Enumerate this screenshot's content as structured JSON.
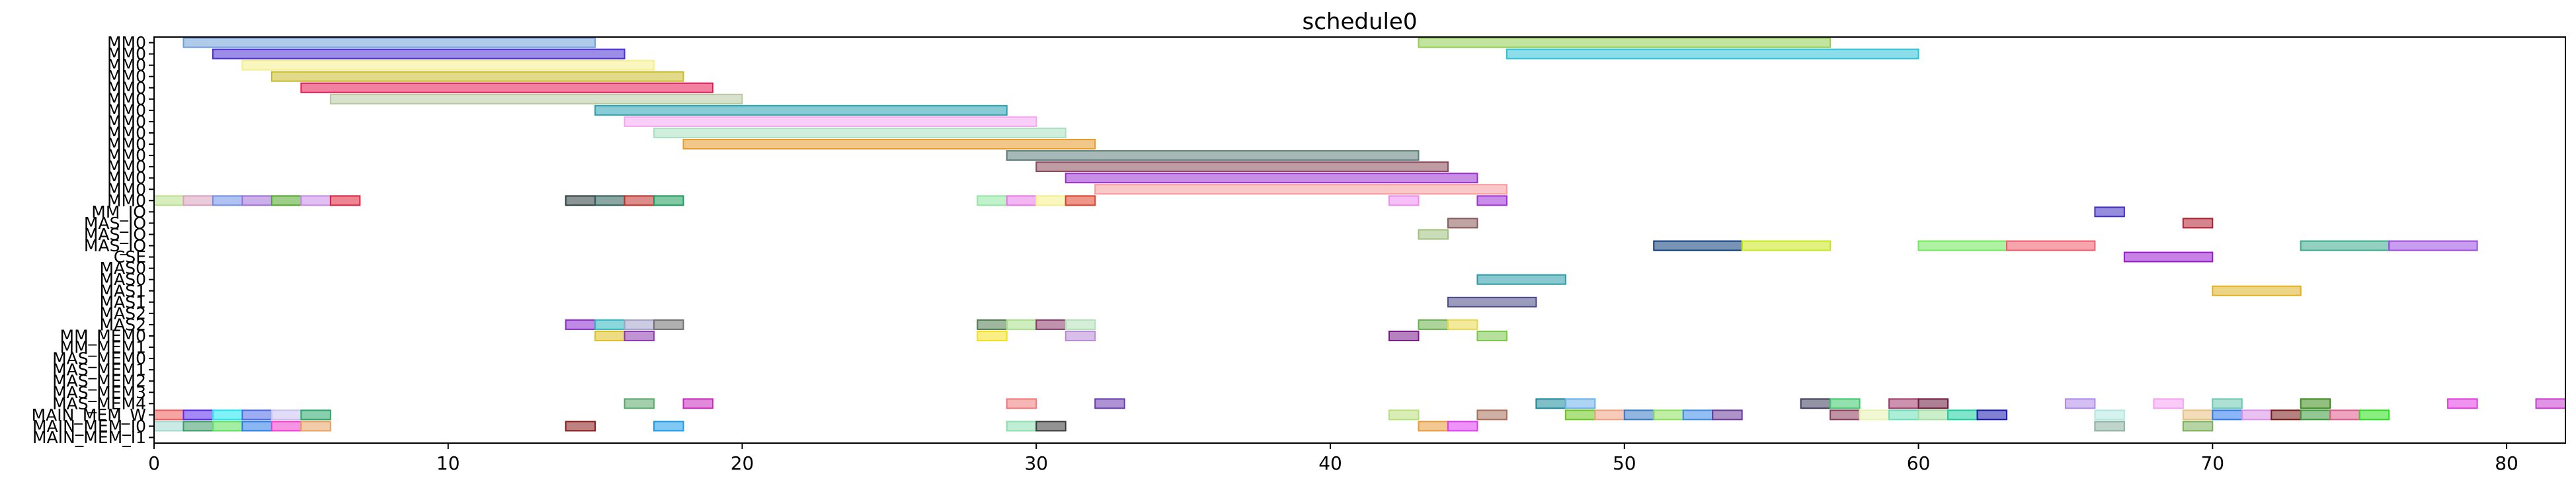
{
  "chart_data": {
    "type": "gantt",
    "title": "schedule0",
    "xlim": [
      0,
      82
    ],
    "x_ticks": [
      0,
      10,
      20,
      30,
      40,
      50,
      60,
      70,
      80
    ],
    "rows": [
      "MM0",
      "MM0",
      "MM0",
      "MM0",
      "MM0",
      "MM0",
      "MM0",
      "MM0",
      "MM0",
      "MM0",
      "MM0",
      "MM0",
      "MM0",
      "MM0",
      "MM0",
      "MM_IO",
      "MAS_IO",
      "MAS_IO",
      "MAS_IO",
      "CSE",
      "MAS0",
      "MAS0",
      "MAS1",
      "MAS1",
      "MAS2",
      "MAS2",
      "MM_MEM0",
      "MM_MEM1",
      "MAS_MEM0",
      "MAS_MEM1",
      "MAS_MEM2",
      "MAS_MEM3",
      "MAS_MEM4",
      "MAIN_MEM_W",
      "MAIN_MEM_I0",
      "MAIN_MEM_I1"
    ],
    "grid": false,
    "tasks": [
      {
        "row": 0,
        "start": 1,
        "end": 15,
        "color": "#6f9ed9"
      },
      {
        "row": 0,
        "start": 43,
        "end": 57,
        "color": "#8fce4f"
      },
      {
        "row": 1,
        "start": 2,
        "end": 16,
        "color": "#4b2fd4"
      },
      {
        "row": 1,
        "start": 46,
        "end": 60,
        "color": "#2cc3d8"
      },
      {
        "row": 2,
        "start": 3,
        "end": 17,
        "color": "#f5ef8c"
      },
      {
        "row": 3,
        "start": 4,
        "end": 18,
        "color": "#c7bb2a"
      },
      {
        "row": 4,
        "start": 5,
        "end": 19,
        "color": "#e41a52"
      },
      {
        "row": 5,
        "start": 6,
        "end": 20,
        "color": "#b7c9a0"
      },
      {
        "row": 6,
        "start": 15,
        "end": 29,
        "color": "#2aa3b3"
      },
      {
        "row": 7,
        "start": 16,
        "end": 30,
        "color": "#f5a7f0"
      },
      {
        "row": 8,
        "start": 17,
        "end": 31,
        "color": "#a8e0c0"
      },
      {
        "row": 9,
        "start": 18,
        "end": 32,
        "color": "#e89a2a"
      },
      {
        "row": 10,
        "start": 29,
        "end": 43,
        "color": "#5c7f7a"
      },
      {
        "row": 11,
        "start": 30,
        "end": 44,
        "color": "#8b4a5a"
      },
      {
        "row": 12,
        "start": 31,
        "end": 45,
        "color": "#9b2fd0"
      },
      {
        "row": 13,
        "start": 32,
        "end": 46,
        "color": "#f59a9a"
      },
      {
        "row": 14,
        "start": 0,
        "end": 1,
        "color": "#b8e08a"
      },
      {
        "row": 14,
        "start": 1,
        "end": 2,
        "color": "#d9a0c0"
      },
      {
        "row": 14,
        "start": 2,
        "end": 3,
        "color": "#6f8fe8"
      },
      {
        "row": 14,
        "start": 3,
        "end": 4,
        "color": "#a06fd8"
      },
      {
        "row": 14,
        "start": 4,
        "end": 5,
        "color": "#4fa82a"
      },
      {
        "row": 14,
        "start": 5,
        "end": 6,
        "color": "#c88ae8"
      },
      {
        "row": 14,
        "start": 6,
        "end": 7,
        "color": "#e0203a"
      },
      {
        "row": 14,
        "start": 14,
        "end": 15,
        "color": "#2c3e3e"
      },
      {
        "row": 14,
        "start": 15,
        "end": 16,
        "color": "#2c5e5a"
      },
      {
        "row": 14,
        "start": 16,
        "end": 17,
        "color": "#c0302a"
      },
      {
        "row": 14,
        "start": 17,
        "end": 18,
        "color": "#1a9a5a"
      },
      {
        "row": 14,
        "start": 28,
        "end": 29,
        "color": "#8fe8a0"
      },
      {
        "row": 14,
        "start": 29,
        "end": 30,
        "color": "#e87ae8"
      },
      {
        "row": 14,
        "start": 30,
        "end": 31,
        "color": "#f5f08a"
      },
      {
        "row": 14,
        "start": 31,
        "end": 32,
        "color": "#e0402a"
      },
      {
        "row": 14,
        "start": 42,
        "end": 43,
        "color": "#f08af0"
      },
      {
        "row": 14,
        "start": 45,
        "end": 46,
        "color": "#a030d8"
      },
      {
        "row": 15,
        "start": 66,
        "end": 67,
        "color": "#4030c0"
      },
      {
        "row": 16,
        "start": 44,
        "end": 45,
        "color": "#8a5a5a"
      },
      {
        "row": 16,
        "start": 69,
        "end": 70,
        "color": "#b02030"
      },
      {
        "row": 17,
        "start": 43,
        "end": 44,
        "color": "#a0c080"
      },
      {
        "row": 18,
        "start": 51,
        "end": 54,
        "color": "#0a3a7a"
      },
      {
        "row": 18,
        "start": 54,
        "end": 57,
        "color": "#c8e81a"
      },
      {
        "row": 18,
        "start": 60,
        "end": 63,
        "color": "#6fe85a"
      },
      {
        "row": 18,
        "start": 63,
        "end": 66,
        "color": "#f05a6a"
      },
      {
        "row": 18,
        "start": 73,
        "end": 76,
        "color": "#3aaa8a"
      },
      {
        "row": 18,
        "start": 76,
        "end": 79,
        "color": "#9a4ae0"
      },
      {
        "row": 19,
        "start": 67,
        "end": 70,
        "color": "#9a1ad0"
      },
      {
        "row": 21,
        "start": 45,
        "end": 48,
        "color": "#2a9aa8"
      },
      {
        "row": 22,
        "start": 70,
        "end": 73,
        "color": "#e0b020"
      },
      {
        "row": 23,
        "start": 44,
        "end": 47,
        "color": "#4a4a8a"
      },
      {
        "row": 25,
        "start": 14,
        "end": 15,
        "color": "#8a2ad0"
      },
      {
        "row": 25,
        "start": 15,
        "end": 16,
        "color": "#2ab8c0"
      },
      {
        "row": 25,
        "start": 16,
        "end": 17,
        "color": "#a0a0c8"
      },
      {
        "row": 25,
        "start": 17,
        "end": 18,
        "color": "#707070"
      },
      {
        "row": 25,
        "start": 28,
        "end": 29,
        "color": "#507a50"
      },
      {
        "row": 25,
        "start": 29,
        "end": 30,
        "color": "#a8e08a"
      },
      {
        "row": 25,
        "start": 30,
        "end": 31,
        "color": "#8a3a6a"
      },
      {
        "row": 25,
        "start": 31,
        "end": 32,
        "color": "#b0e0b8"
      },
      {
        "row": 25,
        "start": 43,
        "end": 44,
        "color": "#6ab04a"
      },
      {
        "row": 25,
        "start": 44,
        "end": 45,
        "color": "#e8d84a"
      },
      {
        "row": 26,
        "start": 15,
        "end": 16,
        "color": "#e0c020"
      },
      {
        "row": 26,
        "start": 16,
        "end": 17,
        "color": "#8a3ab0"
      },
      {
        "row": 26,
        "start": 28,
        "end": 29,
        "color": "#f5e020"
      },
      {
        "row": 26,
        "start": 31,
        "end": 32,
        "color": "#b88ad8"
      },
      {
        "row": 26,
        "start": 42,
        "end": 43,
        "color": "#7a1a8a"
      },
      {
        "row": 26,
        "start": 45,
        "end": 46,
        "color": "#7ac84a"
      },
      {
        "row": 32,
        "start": 16,
        "end": 17,
        "color": "#5aa86a"
      },
      {
        "row": 32,
        "start": 18,
        "end": 19,
        "color": "#c82ac0"
      },
      {
        "row": 32,
        "start": 29,
        "end": 30,
        "color": "#f07a7a"
      },
      {
        "row": 32,
        "start": 32,
        "end": 33,
        "color": "#6a3ab0"
      },
      {
        "row": 32,
        "start": 47,
        "end": 48,
        "color": "#1a8a9a"
      },
      {
        "row": 32,
        "start": 48,
        "end": 49,
        "color": "#6ab0e8"
      },
      {
        "row": 32,
        "start": 56,
        "end": 57,
        "color": "#3a3a5a"
      },
      {
        "row": 32,
        "start": 57,
        "end": 58,
        "color": "#3ac86a"
      },
      {
        "row": 32,
        "start": 59,
        "end": 60,
        "color": "#a03a6a"
      },
      {
        "row": 32,
        "start": 60,
        "end": 61,
        "color": "#6a1a3a"
      },
      {
        "row": 32,
        "start": 65,
        "end": 66,
        "color": "#b08ae8"
      },
      {
        "row": 32,
        "start": 68,
        "end": 69,
        "color": "#f5a0f0"
      },
      {
        "row": 32,
        "start": 70,
        "end": 71,
        "color": "#6ac8b0"
      },
      {
        "row": 32,
        "start": 73,
        "end": 74,
        "color": "#3a8a1a"
      },
      {
        "row": 32,
        "start": 78,
        "end": 79,
        "color": "#e03ae0"
      },
      {
        "row": 32,
        "start": 81,
        "end": 82,
        "color": "#c83ad0"
      },
      {
        "row": 33,
        "start": 0,
        "end": 1,
        "color": "#f05a5a"
      },
      {
        "row": 33,
        "start": 1,
        "end": 2,
        "color": "#5a2af0"
      },
      {
        "row": 33,
        "start": 2,
        "end": 3,
        "color": "#1ae8f0"
      },
      {
        "row": 33,
        "start": 3,
        "end": 4,
        "color": "#4a6ae8"
      },
      {
        "row": 33,
        "start": 4,
        "end": 5,
        "color": "#c8c0f0"
      },
      {
        "row": 33,
        "start": 5,
        "end": 6,
        "color": "#2aa86a"
      },
      {
        "row": 33,
        "start": 42,
        "end": 43,
        "color": "#b8e07a"
      },
      {
        "row": 33,
        "start": 45,
        "end": 46,
        "color": "#a8705a"
      },
      {
        "row": 33,
        "start": 48,
        "end": 49,
        "color": "#6ac81a"
      },
      {
        "row": 33,
        "start": 49,
        "end": 50,
        "color": "#f0a080"
      },
      {
        "row": 33,
        "start": 50,
        "end": 51,
        "color": "#3a7ac8"
      },
      {
        "row": 33,
        "start": 51,
        "end": 52,
        "color": "#8ae05a"
      },
      {
        "row": 33,
        "start": 52,
        "end": 53,
        "color": "#3a8ae8"
      },
      {
        "row": 33,
        "start": 53,
        "end": 54,
        "color": "#6a3a9a"
      },
      {
        "row": 33,
        "start": 57,
        "end": 58,
        "color": "#8a3a5a"
      },
      {
        "row": 33,
        "start": 58,
        "end": 59,
        "color": "#e8f0b0"
      },
      {
        "row": 33,
        "start": 59,
        "end": 60,
        "color": "#6ae0b8"
      },
      {
        "row": 33,
        "start": 60,
        "end": 61,
        "color": "#a0e0a0"
      },
      {
        "row": 33,
        "start": 61,
        "end": 62,
        "color": "#1ad0a0"
      },
      {
        "row": 33,
        "start": 62,
        "end": 63,
        "color": "#1a1ab0"
      },
      {
        "row": 33,
        "start": 66,
        "end": 67,
        "color": "#b0e8e0"
      },
      {
        "row": 33,
        "start": 69,
        "end": 70,
        "color": "#e8c080"
      },
      {
        "row": 33,
        "start": 70,
        "end": 71,
        "color": "#2a7af0"
      },
      {
        "row": 33,
        "start": 71,
        "end": 72,
        "color": "#d890e8"
      },
      {
        "row": 33,
        "start": 72,
        "end": 73,
        "color": "#7a1a1a"
      },
      {
        "row": 33,
        "start": 73,
        "end": 74,
        "color": "#3a9a3a"
      },
      {
        "row": 33,
        "start": 74,
        "end": 75,
        "color": "#e05a8a"
      },
      {
        "row": 33,
        "start": 75,
        "end": 76,
        "color": "#2ae01a"
      },
      {
        "row": 34,
        "start": 0,
        "end": 1,
        "color": "#a0d8d0"
      },
      {
        "row": 34,
        "start": 1,
        "end": 2,
        "color": "#3a9a6a"
      },
      {
        "row": 34,
        "start": 2,
        "end": 3,
        "color": "#5ae05a"
      },
      {
        "row": 34,
        "start": 3,
        "end": 4,
        "color": "#2a7ae8"
      },
      {
        "row": 34,
        "start": 4,
        "end": 5,
        "color": "#f03ad0"
      },
      {
        "row": 34,
        "start": 5,
        "end": 6,
        "color": "#e8a060"
      },
      {
        "row": 34,
        "start": 14,
        "end": 15,
        "color": "#8a1a1a"
      },
      {
        "row": 34,
        "start": 17,
        "end": 18,
        "color": "#1a9ae8"
      },
      {
        "row": 34,
        "start": 29,
        "end": 30,
        "color": "#8ae0b0"
      },
      {
        "row": 34,
        "start": 30,
        "end": 31,
        "color": "#3a3a3a"
      },
      {
        "row": 34,
        "start": 43,
        "end": 44,
        "color": "#e89a3a"
      },
      {
        "row": 34,
        "start": 44,
        "end": 45,
        "color": "#e03af0"
      },
      {
        "row": 34,
        "start": 66,
        "end": 67,
        "color": "#8ab0a0"
      },
      {
        "row": 34,
        "start": 69,
        "end": 70,
        "color": "#7ab05a"
      }
    ]
  }
}
